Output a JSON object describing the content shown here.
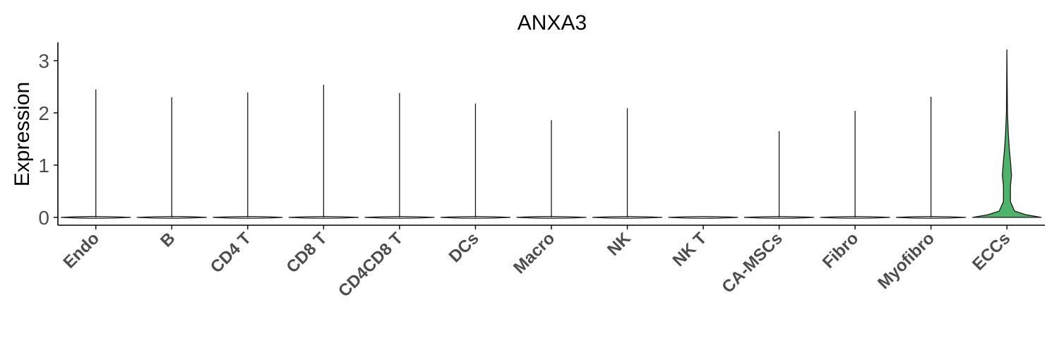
{
  "chart_data": {
    "type": "violin",
    "title": "ANXA3",
    "xlabel": "",
    "ylabel": "Expression",
    "ylim": [
      -0.15,
      3.35
    ],
    "yticks": [
      0,
      1,
      2,
      3
    ],
    "grid": false,
    "legend": "none",
    "categories": [
      "Endo",
      "B",
      "CD4 T",
      "CD8 T",
      "CD4CD8 T",
      "DCs",
      "Macro",
      "NK",
      "NK T",
      "CA-MSCs",
      "Fibro",
      "Myofibro",
      "ECCs"
    ],
    "max_values": [
      2.45,
      2.3,
      2.39,
      2.54,
      2.38,
      2.18,
      1.86,
      2.09,
      0.0,
      1.65,
      2.04,
      2.31,
      3.21
    ],
    "highlight": {
      "category": "ECCs",
      "color": "#4fb36b",
      "density_profile": [
        {
          "y": 0.0,
          "halfwidth": 0.98
        },
        {
          "y": 0.05,
          "halfwidth": 0.55
        },
        {
          "y": 0.12,
          "halfwidth": 0.22
        },
        {
          "y": 0.3,
          "halfwidth": 0.1
        },
        {
          "y": 0.6,
          "halfwidth": 0.1
        },
        {
          "y": 0.8,
          "halfwidth": 0.13
        },
        {
          "y": 1.0,
          "halfwidth": 0.11
        },
        {
          "y": 1.3,
          "halfwidth": 0.07
        },
        {
          "y": 1.6,
          "halfwidth": 0.04
        },
        {
          "y": 2.0,
          "halfwidth": 0.015
        },
        {
          "y": 3.21,
          "halfwidth": 0.0
        }
      ]
    },
    "colors": {
      "axis": "#000000",
      "violin_stroke": "#1a1a1a",
      "violin_fill": "#ffffff"
    }
  }
}
